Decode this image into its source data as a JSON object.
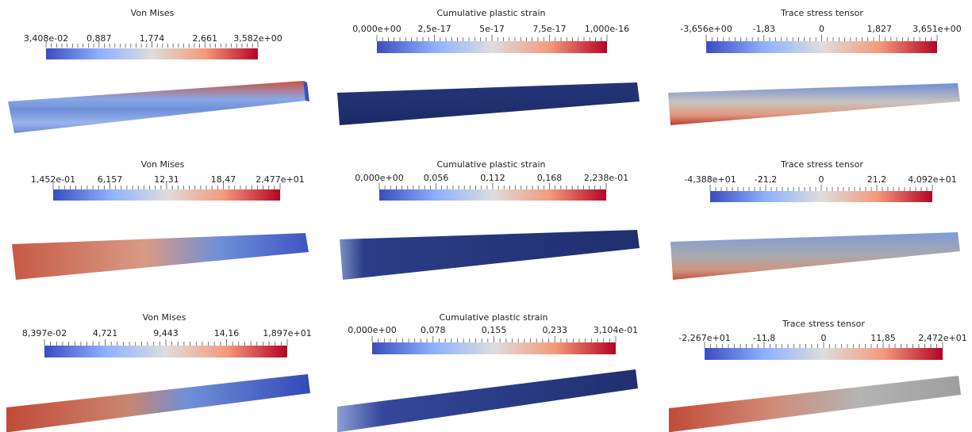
{
  "grid": [
    {
      "row": 1,
      "panels": [
        {
          "title": "Von Mises",
          "ticks": [
            "3,408e-02",
            "0,887",
            "1,774",
            "2,661",
            "3,582e+00"
          ],
          "range": [
            0.03408,
            3.582
          ],
          "beam_pattern": "vonmises-row1"
        },
        {
          "title": "Cumulative plastic strain",
          "ticks": [
            "0,000e+00",
            "2,5e-17",
            "5e-17",
            "7,5e-17",
            "1,000e-16"
          ],
          "range": [
            0.0,
            1e-16
          ],
          "beam_pattern": "plastic-row1"
        },
        {
          "title": "Trace stress tensor",
          "ticks": [
            "-3,656e+00",
            "-1,83",
            "0",
            "1,827",
            "3,651e+00"
          ],
          "range": [
            -3.656,
            3.651
          ],
          "beam_pattern": "trace-row1"
        }
      ]
    },
    {
      "row": 2,
      "panels": [
        {
          "title": "Von Mises",
          "ticks": [
            "1,452e-01",
            "6,157",
            "12,31",
            "18,47",
            "2,477e+01"
          ],
          "range": [
            0.1452,
            24.77
          ],
          "beam_pattern": "vonmises-row2"
        },
        {
          "title": "Cumulative plastic strain",
          "ticks": [
            "0,000e+00",
            "0,056",
            "0,112",
            "0,168",
            "2,238e-01"
          ],
          "range": [
            0.0,
            0.2238
          ],
          "beam_pattern": "plastic-row2"
        },
        {
          "title": "Trace stress tensor",
          "ticks": [
            "-4,388e+01",
            "-21,2",
            "0",
            "21,2",
            "4,092e+01"
          ],
          "range": [
            -43.88,
            40.92
          ],
          "beam_pattern": "trace-row2"
        }
      ]
    },
    {
      "row": 3,
      "panels": [
        {
          "title": "Von Mises",
          "ticks": [
            "8,397e-02",
            "4,721",
            "9,443",
            "14,16",
            "1,897e+01"
          ],
          "range": [
            0.08397,
            18.97
          ],
          "beam_pattern": "vonmises-row3"
        },
        {
          "title": "Cumulative plastic strain",
          "ticks": [
            "0,000e+00",
            "0,078",
            "0,155",
            "0,233",
            "3,104e-01"
          ],
          "range": [
            0.0,
            0.3104
          ],
          "beam_pattern": "plastic-row3"
        },
        {
          "title": "Trace stress tensor",
          "ticks": [
            "-2,267e+01",
            "-11,8",
            "0",
            "11,85",
            "2,472e+01"
          ],
          "range": [
            -22.67,
            24.72
          ],
          "beam_pattern": "trace-row3"
        }
      ]
    }
  ],
  "colormap": {
    "name": "Cool to Warm",
    "stops": [
      "#3b4cc0",
      "#8db0fe",
      "#dddddd",
      "#f49a7b",
      "#b40426"
    ],
    "dark_blue": "#1f2f6e"
  }
}
